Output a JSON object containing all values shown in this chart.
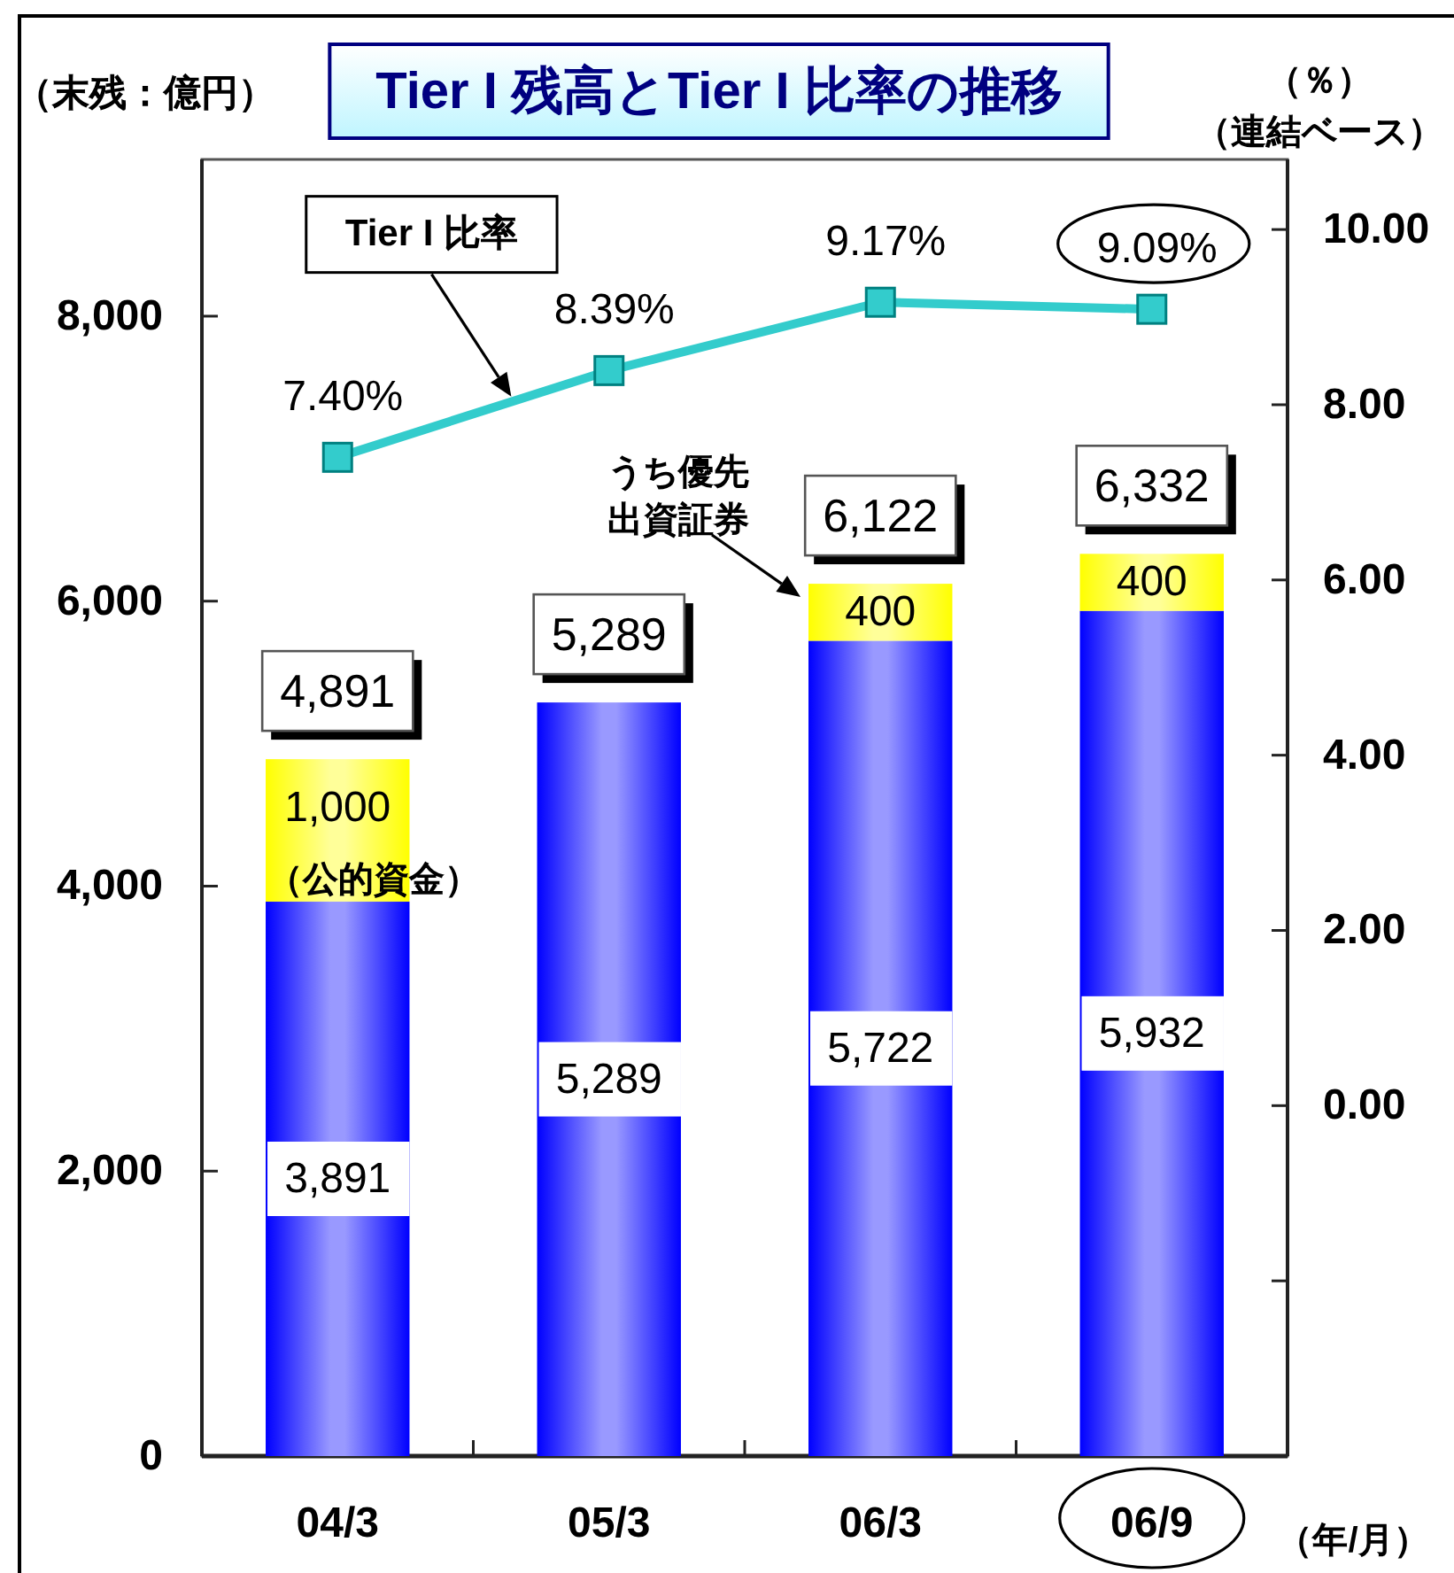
{
  "chart_data": {
    "type": "bar",
    "title": "Tier I 残高とTier I 比率の推移",
    "ylabel": "（末残：億円）",
    "y2label": "（％）（連結ベース）",
    "xlabel": "（年/月）",
    "categories": [
      "04/3",
      "05/3",
      "06/3",
      "06/9"
    ],
    "stacked": true,
    "series": [
      {
        "color": "#0000ff",
        "values": [
          3891,
          5289,
          5722,
          5932
        ],
        "value_labels": [
          "3,891",
          "5,289",
          "5,722",
          "5,932"
        ]
      },
      {
        "color": "#ffff00",
        "values": [
          1000,
          null,
          400,
          400
        ],
        "value_labels": [
          "1,000",
          null,
          "400",
          "400"
        ]
      },
      {
        "name": "Tier I 比率",
        "type": "line",
        "axis": "y2",
        "color": "#33cccc",
        "marker": "square",
        "values": [
          7.4,
          8.39,
          9.17,
          9.09
        ],
        "value_labels": [
          "7.40%",
          "8.39%",
          "9.17%",
          "9.09%"
        ]
      }
    ],
    "totals": [
      "4,891",
      "5,289",
      "6,122",
      "6,332"
    ],
    "ylim": [
      0,
      9100
    ],
    "yticks": [
      0,
      {
        "value": 2000,
        "label": "2,000"
      },
      {
        "value": 4000,
        "label": "4,000"
      },
      {
        "value": 6000,
        "label": "6,000"
      },
      {
        "value": 8000,
        "label": "8,000"
      }
    ],
    "y2lim": [
      -4,
      10.8
    ],
    "y2ticks": [
      {
        "value": -2,
        "label": null
      },
      {
        "value": 0,
        "label": "0.00"
      },
      {
        "value": 2,
        "label": "2.00"
      },
      {
        "value": 4,
        "label": "4.00"
      },
      {
        "value": 6,
        "label": "6.00"
      },
      {
        "value": 8,
        "label": "8.00"
      },
      {
        "value": 10,
        "label": "10.00"
      }
    ],
    "annotations": [
      {
        "text": "（公的資金）",
        "x": "04/3",
        "y": 3891
      },
      "うち優先出資証券"
    ]
  }
}
